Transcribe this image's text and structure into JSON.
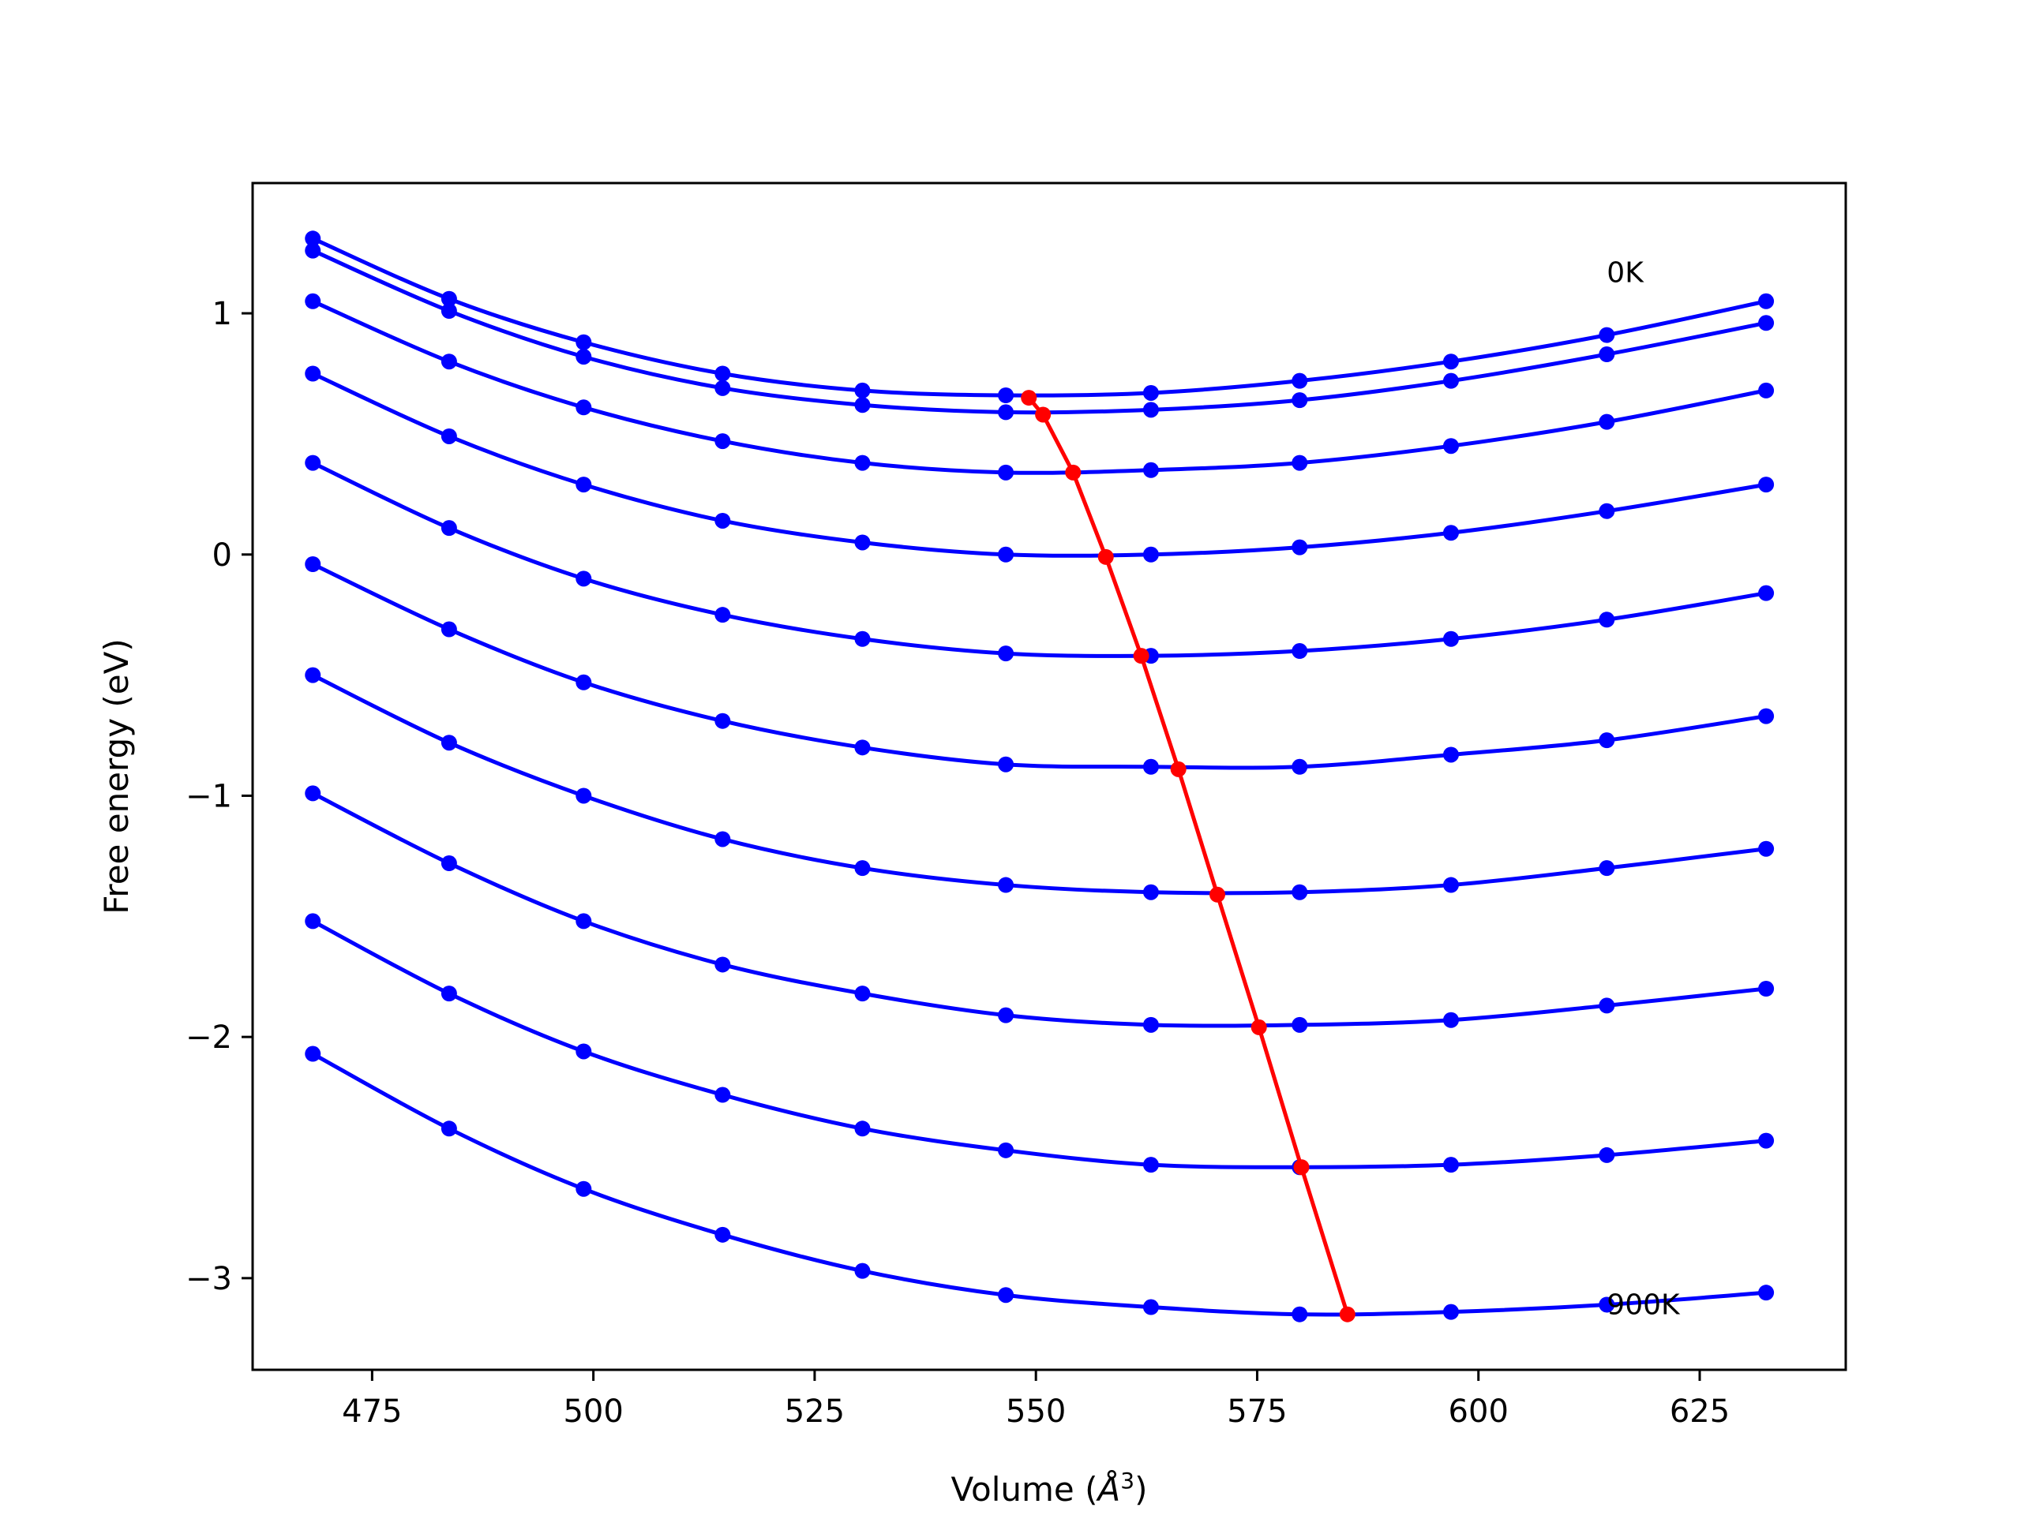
{
  "chart_data": {
    "type": "line",
    "title": "",
    "xlabel": "Volume (Å³)",
    "xlabel_prefix": "Volume (",
    "xlabel_unit": "Å",
    "xlabel_exp": "3",
    "xlabel_suffix": ")",
    "ylabel": "Free energy (eV)",
    "xlim": [
      461.5,
      641.5
    ],
    "ylim": [
      -3.38,
      1.54
    ],
    "xticks": [
      475,
      500,
      525,
      550,
      575,
      600,
      625
    ],
    "xtick_labels": [
      "475",
      "500",
      "525",
      "550",
      "575",
      "600",
      "625"
    ],
    "yticks": [
      1,
      0,
      -1,
      -2,
      -3
    ],
    "ytick_labels": [
      "1",
      "0",
      "−1",
      "−2",
      "−3"
    ],
    "grid": false,
    "legend": "none",
    "annotations": [
      {
        "text": "0K",
        "x": 614.5,
        "y": 1.13
      },
      {
        "text": "900K",
        "x": 614.5,
        "y": -3.15
      }
    ],
    "x": [
      468.3,
      483.7,
      498.9,
      514.6,
      530.4,
      546.6,
      563.0,
      579.8,
      596.9,
      614.5,
      632.5
    ],
    "series": [
      {
        "color": "#0000ff",
        "values": [
          1.31,
          1.06,
          0.88,
          0.75,
          0.68,
          0.66,
          0.67,
          0.72,
          0.8,
          0.91,
          1.05
        ]
      },
      {
        "color": "#0000ff",
        "values": [
          1.26,
          1.01,
          0.82,
          0.69,
          0.62,
          0.59,
          0.6,
          0.64,
          0.72,
          0.83,
          0.96
        ]
      },
      {
        "color": "#0000ff",
        "values": [
          1.05,
          0.8,
          0.61,
          0.47,
          0.38,
          0.34,
          0.35,
          0.38,
          0.45,
          0.55,
          0.68
        ]
      },
      {
        "color": "#0000ff",
        "values": [
          0.75,
          0.49,
          0.29,
          0.14,
          0.05,
          0.0,
          0.0,
          0.03,
          0.09,
          0.18,
          0.29
        ]
      },
      {
        "color": "#0000ff",
        "values": [
          0.38,
          0.11,
          -0.1,
          -0.25,
          -0.35,
          -0.41,
          -0.42,
          -0.4,
          -0.35,
          -0.27,
          -0.16
        ]
      },
      {
        "color": "#0000ff",
        "values": [
          -0.04,
          -0.31,
          -0.53,
          -0.69,
          -0.8,
          -0.87,
          -0.88,
          -0.88,
          -0.83,
          -0.77,
          -0.67
        ]
      },
      {
        "color": "#0000ff",
        "values": [
          -0.5,
          -0.78,
          -1.0,
          -1.18,
          -1.3,
          -1.37,
          -1.4,
          -1.4,
          -1.37,
          -1.3,
          -1.22
        ]
      },
      {
        "color": "#0000ff",
        "values": [
          -0.99,
          -1.28,
          -1.52,
          -1.7,
          -1.82,
          -1.91,
          -1.95,
          -1.95,
          -1.93,
          -1.87,
          -1.8
        ]
      },
      {
        "color": "#0000ff",
        "values": [
          -1.52,
          -1.82,
          -2.06,
          -2.24,
          -2.38,
          -2.47,
          -2.53,
          -2.54,
          -2.53,
          -2.49,
          -2.43
        ]
      },
      {
        "color": "#0000ff",
        "values": [
          -2.07,
          -2.38,
          -2.63,
          -2.82,
          -2.97,
          -3.07,
          -3.12,
          -3.15,
          -3.14,
          -3.11,
          -3.06
        ]
      }
    ],
    "minima_series": {
      "color": "#ff0000",
      "points": [
        [
          549.2,
          0.65
        ],
        [
          550.8,
          0.58
        ],
        [
          554.2,
          0.34
        ],
        [
          557.9,
          -0.01
        ],
        [
          561.9,
          -0.42
        ],
        [
          566.1,
          -0.89
        ],
        [
          570.5,
          -1.41
        ],
        [
          575.2,
          -1.96
        ],
        [
          580.0,
          -2.54
        ],
        [
          585.2,
          -3.15
        ]
      ]
    }
  }
}
